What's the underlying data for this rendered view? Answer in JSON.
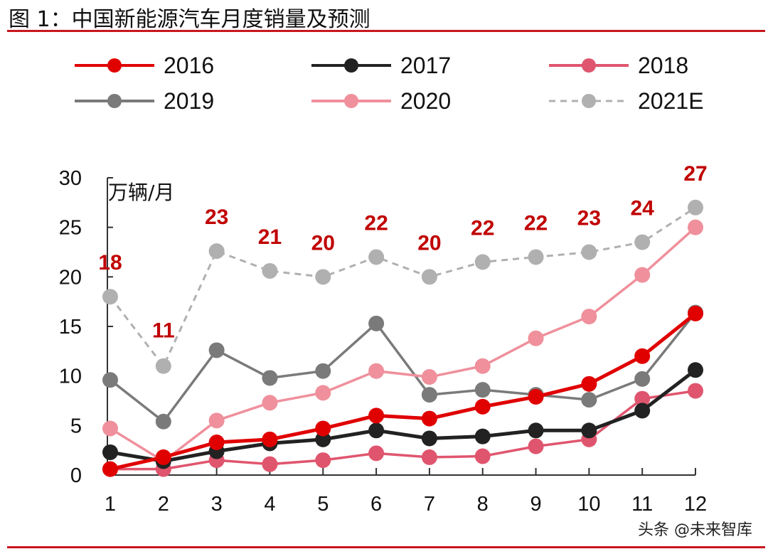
{
  "title": "图 1：中国新能源汽车月度销量及预测",
  "watermark": "头条 @未来智库",
  "chart_data": {
    "type": "line",
    "title": "图 1：中国新能源汽车月度销量及预测",
    "ylabel": "万辆/月",
    "xlabel": "",
    "categories": [
      "1",
      "2",
      "3",
      "4",
      "5",
      "6",
      "7",
      "8",
      "9",
      "10",
      "11",
      "12"
    ],
    "yticks": [
      "0",
      "5",
      "10",
      "15",
      "20",
      "25",
      "30"
    ],
    "ylim": [
      0,
      30
    ],
    "grid": false,
    "legend_position": "top",
    "series": [
      {
        "name": "2016",
        "color": "#e00000",
        "dashed": false,
        "values": [
          0.6,
          1.8,
          3.3,
          3.6,
          4.7,
          6.0,
          5.7,
          6.9,
          7.9,
          9.2,
          12.0,
          16.3
        ]
      },
      {
        "name": "2017",
        "color": "#222222",
        "dashed": false,
        "values": [
          2.3,
          1.4,
          2.4,
          3.2,
          3.6,
          4.5,
          3.7,
          3.9,
          4.5,
          4.5,
          6.5,
          10.6
        ]
      },
      {
        "name": "2018",
        "color": "#e0556e",
        "dashed": false,
        "values": [
          0.6,
          0.6,
          1.5,
          1.1,
          1.5,
          2.2,
          1.8,
          1.9,
          2.9,
          3.6,
          7.7,
          8.5
        ]
      },
      {
        "name": "2019",
        "color": "#7a7a7a",
        "dashed": false,
        "values": [
          9.6,
          5.4,
          12.6,
          9.8,
          10.5,
          15.3,
          8.1,
          8.6,
          8.1,
          7.6,
          9.7,
          16.4
        ]
      },
      {
        "name": "2020",
        "color": "#ef909c",
        "dashed": false,
        "values": [
          4.7,
          1.4,
          5.5,
          7.3,
          8.3,
          10.5,
          9.9,
          11.0,
          13.8,
          16.0,
          20.2,
          25.0
        ]
      },
      {
        "name": "2021E",
        "color": "#b0b0b0",
        "dashed": true,
        "values": [
          18,
          11,
          22.6,
          20.6,
          20,
          22,
          20,
          21.5,
          22,
          22.5,
          23.5,
          27
        ]
      }
    ],
    "data_labels": [
      "18",
      "11",
      "23",
      "21",
      "20",
      "22",
      "20",
      "22",
      "22",
      "23",
      "24",
      "27"
    ],
    "data_label_color": "#c00000"
  }
}
